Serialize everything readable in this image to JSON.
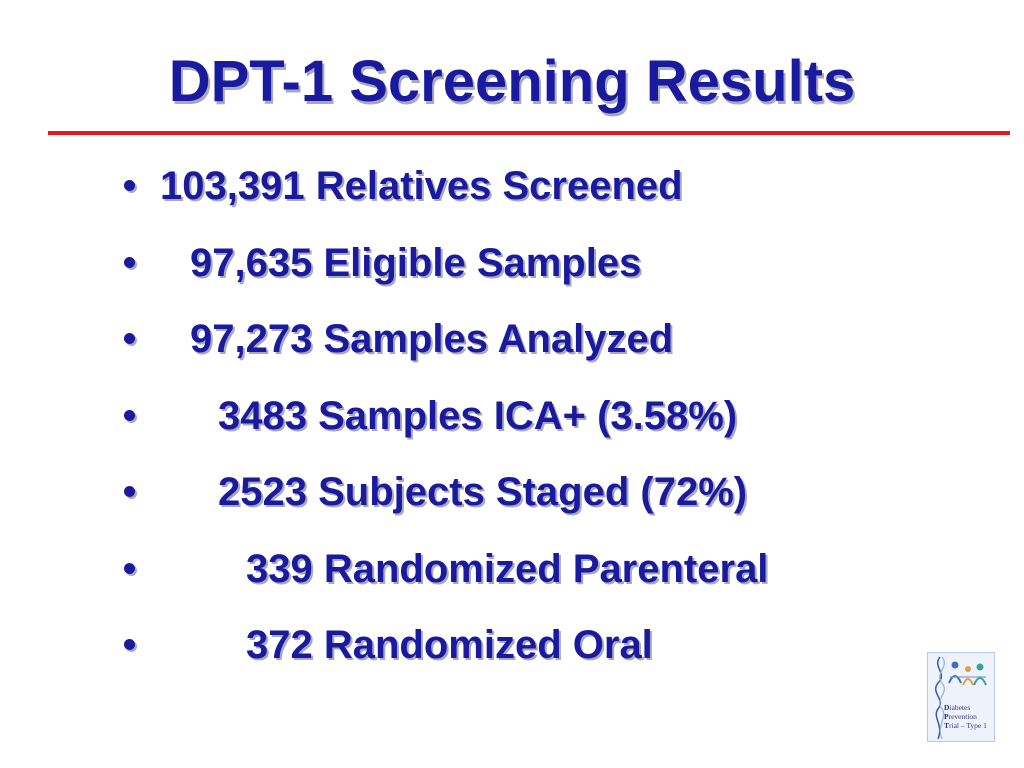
{
  "slide": {
    "title": "DPT-1 Screening Results",
    "bullets": [
      {
        "text": "103,391 Relatives Screened"
      },
      {
        "text": "97,635 Eligible Samples"
      },
      {
        "text": "97,273 Samples Analyzed"
      },
      {
        "text": "3483 Samples ICA+ (3.58%)"
      },
      {
        "text": "2523 Subjects Staged (72%)"
      },
      {
        "text": "339 Randomized Parenteral"
      },
      {
        "text": "372 Randomized Oral"
      }
    ],
    "logo": {
      "line1_cap": "D",
      "line1_rest": "iabetes",
      "line2_cap": "P",
      "line2_rest": "revention",
      "line3_cap": "T",
      "line3_rest": "rial – Type 1"
    }
  },
  "colors": {
    "title": "#1a1a9e",
    "rule": "#e61a1a",
    "bullet_text": "#1a1a9e",
    "background": "#ffffff"
  }
}
